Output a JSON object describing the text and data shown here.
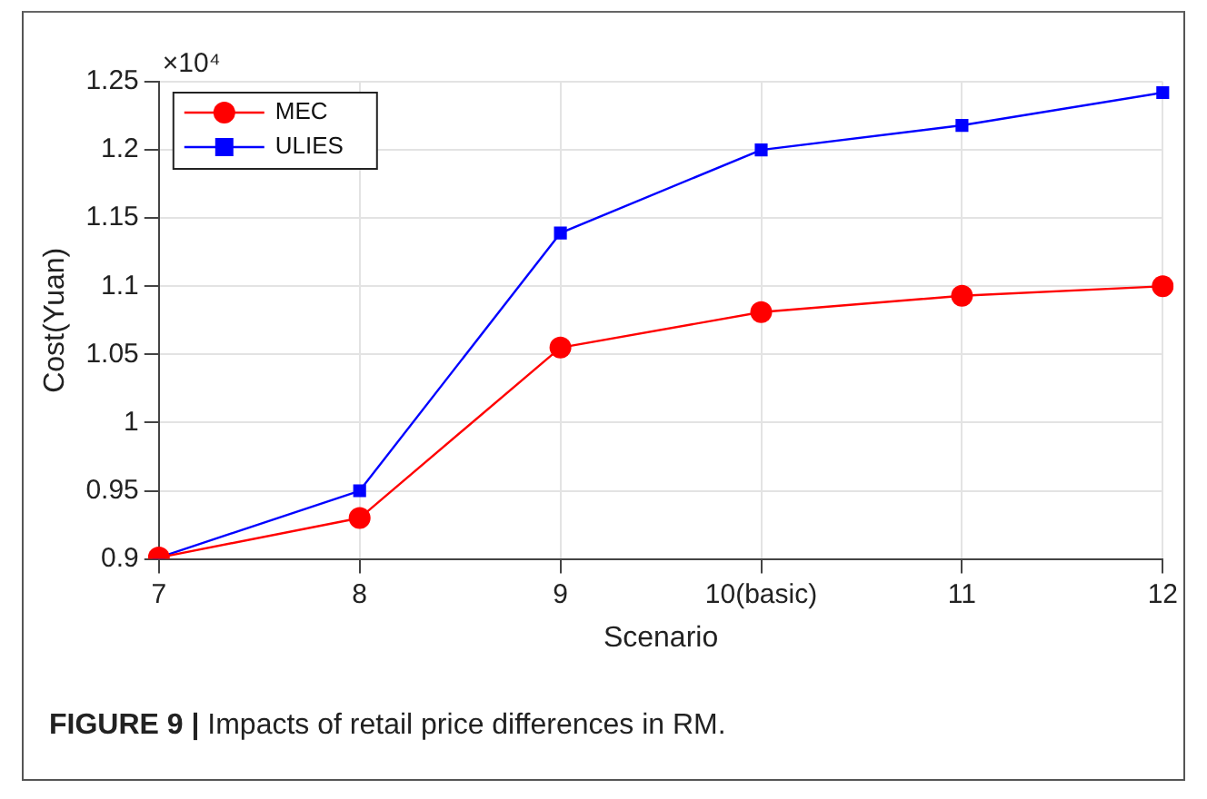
{
  "chart_data": {
    "type": "line",
    "xlabel": "Scenario",
    "ylabel": "Cost(Yuan)",
    "categories": [
      "7",
      "8",
      "9",
      "10(basic)",
      "11",
      "12"
    ],
    "series": [
      {
        "name": "MEC",
        "color": "#ff0000",
        "marker": "circle",
        "values": [
          0.901,
          0.93,
          1.055,
          1.081,
          1.093,
          1.1
        ]
      },
      {
        "name": "ULIES",
        "color": "#0000ff",
        "marker": "square",
        "values": [
          0.901,
          0.95,
          1.139,
          1.2,
          1.218,
          1.242
        ]
      }
    ],
    "ylim": [
      0.9,
      1.25
    ],
    "yticks": [
      0.9,
      0.95,
      1,
      1.05,
      1.1,
      1.15,
      1.2,
      1.25
    ],
    "grid": true,
    "legend": "top left",
    "line_style": "solid",
    "annotations": [
      "×10⁴",
      "FIGURE 9 |",
      "Impacts of retail price differences in RM."
    ]
  }
}
